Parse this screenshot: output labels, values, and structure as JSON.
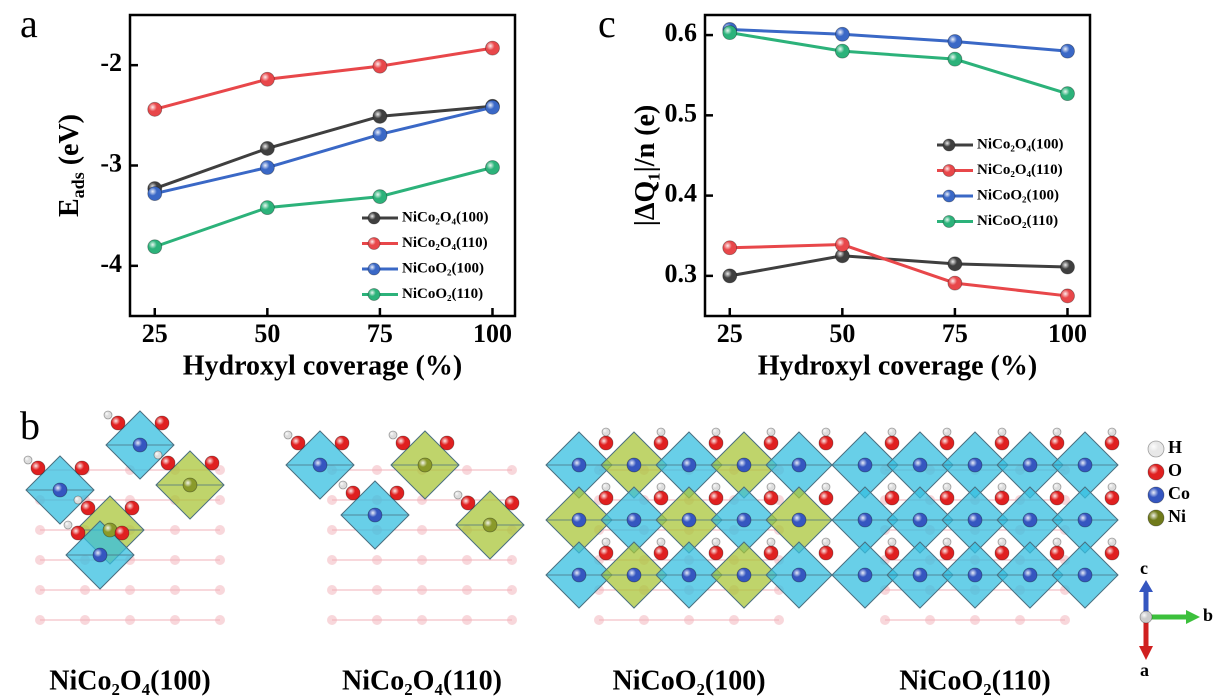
{
  "chart_data": [
    {
      "type": "line",
      "panel": "a",
      "ylabel": [
        {
          "text": "E"
        },
        {
          "text": "ads",
          "sub": true
        },
        {
          "text": " (eV)"
        }
      ],
      "xlabel": "Hydroxyl coverage (%)",
      "x": [
        25,
        50,
        75,
        100
      ],
      "xlim": [
        19.5,
        105
      ],
      "xticks": [
        25,
        50,
        75,
        100
      ],
      "ylim": [
        -4.5,
        -1.5
      ],
      "yticks": [
        -4,
        -3,
        -2
      ],
      "legend": "lower right",
      "series": [
        {
          "name": "NiCo₂O₄(100)",
          "color": "#3f3f3f",
          "values": [
            -3.23,
            -2.83,
            -2.51,
            -2.41
          ]
        },
        {
          "name": "NiCo₂O₄(110)",
          "color": "#e8474a",
          "values": [
            -2.44,
            -2.14,
            -2.01,
            -1.83
          ]
        },
        {
          "name": "NiCoO₂(100)",
          "color": "#3a68c6",
          "values": [
            -3.28,
            -3.02,
            -2.69,
            -2.42
          ]
        },
        {
          "name": "NiCoO₂(110)",
          "color": "#2cb27a",
          "values": [
            -3.81,
            -3.42,
            -3.31,
            -3.02
          ]
        }
      ]
    },
    {
      "type": "line",
      "panel": "c",
      "ylabel": [
        {
          "text": "|ΔQ₁|/n (e)"
        }
      ],
      "xlabel": "Hydroxyl coverage (%)",
      "x": [
        25,
        50,
        75,
        100
      ],
      "xlim": [
        19.5,
        105
      ],
      "xticks": [
        25,
        50,
        75,
        100
      ],
      "ylim": [
        0.25,
        0.625
      ],
      "yticks": [
        0.3,
        0.4,
        0.5,
        0.6
      ],
      "legend": "center right",
      "series": [
        {
          "name": "NiCo₂O₄(100)",
          "color": "#3f3f3f",
          "values": [
            0.3,
            0.325,
            0.315,
            0.311
          ]
        },
        {
          "name": "NiCo₂O₄(110)",
          "color": "#e8474a",
          "values": [
            0.335,
            0.339,
            0.291,
            0.275
          ]
        },
        {
          "name": "NiCoO₂(100)",
          "color": "#3a68c6",
          "values": [
            0.607,
            0.601,
            0.592,
            0.58
          ]
        },
        {
          "name": "NiCoO₂(110)",
          "color": "#2cb27a",
          "values": [
            0.603,
            0.58,
            0.57,
            0.527
          ]
        }
      ]
    }
  ],
  "structures": {
    "panel": "b",
    "labels": [
      "NiCo₂O₄(100)",
      "NiCo₂O₄(110)",
      "NiCoO₂(100)",
      "NiCoO₂(110)"
    ]
  },
  "element_legend": [
    "H",
    "O",
    "Co",
    "Ni"
  ],
  "axes_triad": {
    "up": "c",
    "right": "b",
    "down": "a"
  }
}
